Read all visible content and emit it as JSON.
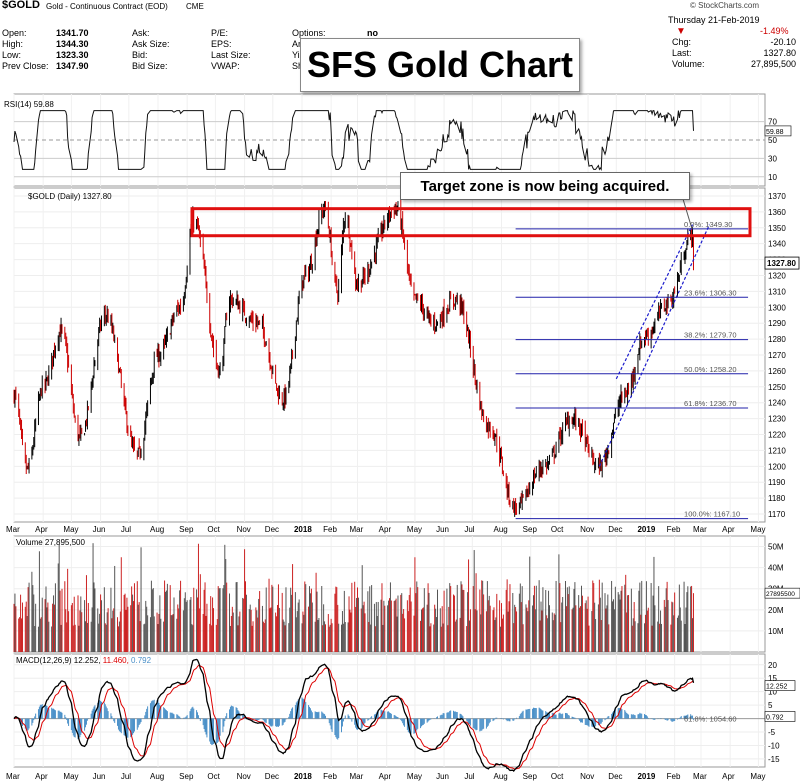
{
  "header": {
    "symbol": "$GOLD",
    "description": "Gold - Continuous Contract (EOD)",
    "exchange": "CME",
    "watermark": "© StockCharts.com",
    "date": "Thursday  21-Feb-2019",
    "change_pct": "-1.49%",
    "rows": [
      {
        "l1": "Open:",
        "v1": "1341.70",
        "l2": "Ask:",
        "l3": "P/E:",
        "l4": "Options:",
        "v4": "no"
      },
      {
        "l1": "High:",
        "v1": "1344.30",
        "l2": "Ask Size:",
        "l3": "EPS:",
        "l4": "Ar"
      },
      {
        "l1": "Low:",
        "v1": "1323.30",
        "l2": "Bid:",
        "l3": "Last Size:",
        "l4": "Yi"
      },
      {
        "l1": "Prev Close:",
        "v1": "1347.90",
        "l2": "Bid Size:",
        "l3": "VWAP:",
        "l4": "Sh"
      }
    ],
    "right_rows": [
      {
        "label": "Chg:",
        "value": "-20.10"
      },
      {
        "label": "Last:",
        "value": "1327.80"
      },
      {
        "label": "Volume:",
        "value": "27,895,500"
      }
    ]
  },
  "title_overlay": "SFS Gold Chart",
  "callout": "Target zone is now being acquired.",
  "colors": {
    "up": "#000000",
    "down": "#cc0000",
    "target_box": "#e01010",
    "fib": "#2020aa",
    "channel": "#1a1acc",
    "volume": "#cc2222",
    "rsi": "#111111",
    "macd": "#000000",
    "signal": "#dd0000",
    "hist": "#4a90c8"
  },
  "chart_data": [
    {
      "type": "line",
      "title": "RSI(14) 59.88",
      "y_ticks": [
        70,
        50,
        30,
        10
      ],
      "last_label": "59.88",
      "ylim": [
        0,
        100
      ]
    },
    {
      "type": "candlestick",
      "title": "$GOLD (Daily) 1327.80",
      "ylim": [
        1165,
        1375
      ],
      "y_ticks": [
        1370,
        1360,
        1350,
        1340,
        1330,
        1320,
        1310,
        1300,
        1290,
        1280,
        1270,
        1260,
        1250,
        1240,
        1230,
        1220,
        1210,
        1200,
        1190,
        1180,
        1170
      ],
      "last_price": "1327.80",
      "x_ticks": [
        "Mar",
        "Apr",
        "May",
        "Jun",
        "Jul",
        "Aug",
        "Sep",
        "Oct",
        "Nov",
        "Dec",
        "2018",
        "Feb",
        "Mar",
        "Apr",
        "May",
        "Jun",
        "Jul",
        "Aug",
        "Sep",
        "Oct",
        "Nov",
        "Dec",
        "2019",
        "Feb",
        "Mar",
        "Apr",
        "May"
      ],
      "price_path": [
        [
          "2017-03-01",
          1245
        ],
        [
          "2017-03-15",
          1198
        ],
        [
          "2017-04-01",
          1250
        ],
        [
          "2017-04-20",
          1285
        ],
        [
          "2017-05-10",
          1218
        ],
        [
          "2017-06-06",
          1295
        ],
        [
          "2017-07-10",
          1207
        ],
        [
          "2017-08-01",
          1270
        ],
        [
          "2017-08-25",
          1300
        ],
        [
          "2017-09-08",
          1355
        ],
        [
          "2017-10-06",
          1260
        ],
        [
          "2017-10-16",
          1305
        ],
        [
          "2017-11-15",
          1290
        ],
        [
          "2017-12-12",
          1242
        ],
        [
          "2018-01-05",
          1320
        ],
        [
          "2018-01-25",
          1362
        ],
        [
          "2018-02-08",
          1310
        ],
        [
          "2018-02-16",
          1358
        ],
        [
          "2018-03-01",
          1315
        ],
        [
          "2018-04-11",
          1362
        ],
        [
          "2018-05-01",
          1305
        ],
        [
          "2018-05-21",
          1290
        ],
        [
          "2018-06-14",
          1305
        ],
        [
          "2018-07-19",
          1225
        ],
        [
          "2018-08-16",
          1174
        ],
        [
          "2018-09-15",
          1200
        ],
        [
          "2018-10-15",
          1230
        ],
        [
          "2018-11-13",
          1200
        ],
        [
          "2018-12-10",
          1245
        ],
        [
          "2019-01-01",
          1282
        ],
        [
          "2019-01-25",
          1303
        ],
        [
          "2019-02-20",
          1346
        ],
        [
          "2019-02-21",
          1327.8
        ]
      ],
      "target_zone": [
        1345,
        1362
      ],
      "fib_levels": [
        {
          "label": "0.0%: 1349.30",
          "value": 1349.3
        },
        {
          "label": "23.6%: 1306.30",
          "value": 1306.3
        },
        {
          "label": "38.2%: 1279.70",
          "value": 1279.7
        },
        {
          "label": "50.0%: 1258.20",
          "value": 1258.2
        },
        {
          "label": "61.8%: 1236.70",
          "value": 1236.7
        },
        {
          "label": "100.0%: 1167.10",
          "value": 1167.1
        }
      ],
      "channel_lines": [
        {
          "from": [
            "2018-11-13",
            1200
          ],
          "to": [
            "2019-03-10",
            1352
          ]
        },
        {
          "from": [
            "2018-12-01",
            1255
          ],
          "to": [
            "2019-02-20",
            1352
          ]
        }
      ]
    },
    {
      "type": "bar",
      "title": "Volume 27,895,500",
      "y_ticks": [
        "50M",
        "40M",
        "30M",
        "20M",
        "10M"
      ],
      "last_label": "27895500"
    },
    {
      "type": "line",
      "title": "MACD(12,26,9) 12.252, 11.460, 0.792",
      "macd": "12.252",
      "signal": "11.460",
      "histogram": "0.792",
      "y_ticks": [
        20,
        15,
        10,
        5,
        0,
        -5,
        -10,
        -15
      ],
      "fib_label": "61.8%: 1054.60",
      "last_labels": [
        "12.252",
        "0.792"
      ]
    }
  ]
}
